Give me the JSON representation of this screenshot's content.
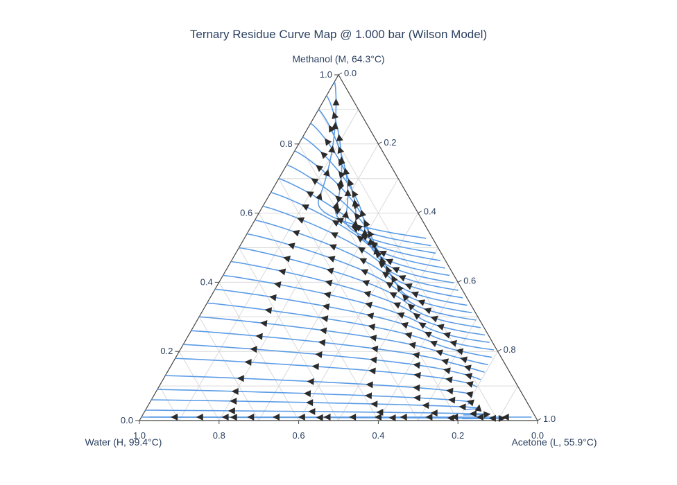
{
  "chart_data": {
    "type": "ternary",
    "title": "Ternary Residue Curve Map @ 1.000 bar (Wilson Model)",
    "vertices": {
      "top": "Methanol (M, 64.3°C)",
      "left": "Water (H, 99.4°C)",
      "right": "Acetone (L, 55.9°C)"
    },
    "axes": {
      "methanol_ticks": [
        "0.0",
        "0.2",
        "0.4",
        "0.6",
        "0.8",
        "1.0"
      ],
      "acetone_ticks": [
        "0.0",
        "0.2",
        "0.4",
        "0.6",
        "0.8",
        "1.0"
      ],
      "water_ticks": [
        "1.0",
        "0.8",
        "0.6",
        "0.4",
        "0.2",
        "0.0"
      ]
    },
    "grid": true,
    "curve_color": "#5b9ce6",
    "arrow_color": "#2b2b2b",
    "curves_description": "Residue curves run from the acetone-methanol azeotrope region (acetone ~0.8) toward the water vertex",
    "curve_params": [
      {
        "m_end": 0.98,
        "a_max": 0.14
      },
      {
        "m_end": 0.94,
        "a_max": 0.2
      },
      {
        "m_end": 0.9,
        "a_max": 0.24
      },
      {
        "m_end": 0.86,
        "a_max": 0.28
      },
      {
        "m_end": 0.82,
        "a_max": 0.32
      },
      {
        "m_end": 0.78,
        "a_max": 0.35
      },
      {
        "m_end": 0.74,
        "a_max": 0.38
      },
      {
        "m_end": 0.7,
        "a_max": 0.41
      },
      {
        "m_end": 0.66,
        "a_max": 0.44
      },
      {
        "m_end": 0.62,
        "a_max": 0.47
      },
      {
        "m_end": 0.58,
        "a_max": 0.5
      },
      {
        "m_end": 0.54,
        "a_max": 0.53
      },
      {
        "m_end": 0.5,
        "a_max": 0.56
      },
      {
        "m_end": 0.46,
        "a_max": 0.59
      },
      {
        "m_end": 0.42,
        "a_max": 0.62
      },
      {
        "m_end": 0.38,
        "a_max": 0.65
      },
      {
        "m_end": 0.34,
        "a_max": 0.68
      },
      {
        "m_end": 0.3,
        "a_max": 0.71
      },
      {
        "m_end": 0.26,
        "a_max": 0.74
      },
      {
        "m_end": 0.22,
        "a_max": 0.76
      },
      {
        "m_end": 0.18,
        "a_max": 0.78
      },
      {
        "m_end": 0.13,
        "a_max": 0.8
      },
      {
        "m_end": 0.09,
        "a_max": 0.82
      },
      {
        "m_end": 0.06,
        "a_max": 0.86
      },
      {
        "m_end": 0.03,
        "a_max": 0.9
      },
      {
        "m_end": 0.01,
        "a_max": 0.96
      }
    ]
  }
}
